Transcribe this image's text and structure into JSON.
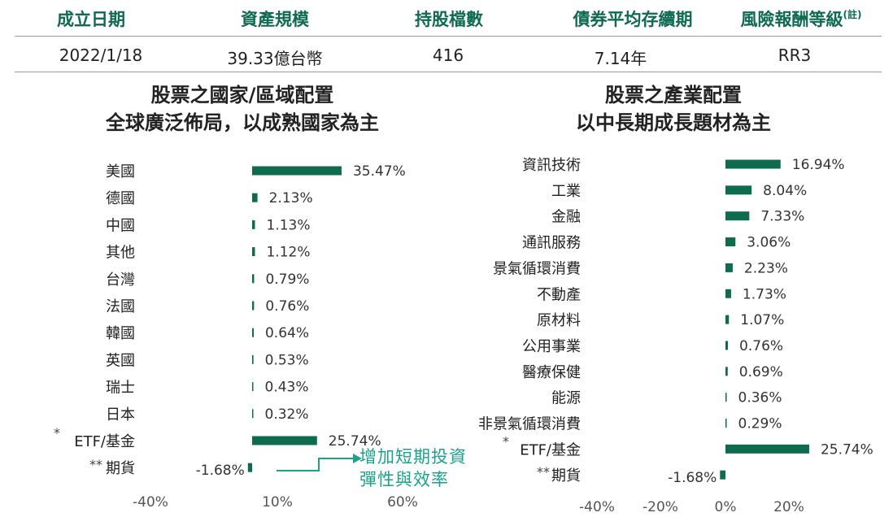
{
  "summary": {
    "headers": [
      "成立日期",
      "資產規模",
      "持股檔數",
      "債券平均存續期",
      "風險報酬等級"
    ],
    "header_note": "(註)",
    "values": [
      "2022/1/18",
      "39.33億台幣",
      "416",
      "7.14年",
      "RR3"
    ]
  },
  "left_panel": {
    "title_line1": "股票之國家/區域配置",
    "title_line2": "全球廣泛佈局，以成熟國家為主"
  },
  "right_panel": {
    "title_line1": "股票之產業配置",
    "title_line2": "以中長期成長題材為主"
  },
  "callout": {
    "line1": "增加短期投資",
    "line2": "彈性與效率"
  },
  "colors": {
    "accent": "#0e6b52",
    "bar": "#0f6b4e",
    "callout": "#1aa38a"
  },
  "chart_data": [
    {
      "type": "bar",
      "orientation": "horizontal",
      "categories": [
        "美國",
        "德國",
        "中國",
        "其他",
        "台灣",
        "法國",
        "韓國",
        "英國",
        "瑞士",
        "日本",
        "ETF/基金",
        "期貨"
      ],
      "category_prefixes": [
        "",
        "",
        "",
        "",
        "",
        "",
        "",
        "",
        "",
        "",
        "*",
        "**"
      ],
      "values": [
        35.47,
        2.13,
        1.13,
        1.12,
        0.79,
        0.76,
        0.64,
        0.53,
        0.43,
        0.32,
        25.74,
        -1.68
      ],
      "value_labels": [
        "35.47%",
        "2.13%",
        "1.13%",
        "1.12%",
        "0.79%",
        "0.76%",
        "0.64%",
        "0.53%",
        "0.43%",
        "0.32%",
        "25.74%",
        "-1.68%"
      ],
      "xticks": [
        "-40%",
        "10%",
        "60%"
      ],
      "xlim": [
        -40,
        60
      ],
      "grid": false,
      "legend": "none"
    },
    {
      "type": "bar",
      "orientation": "horizontal",
      "categories": [
        "資訊技術",
        "工業",
        "金融",
        "通訊服務",
        "景氣循環消費",
        "不動產",
        "原材料",
        "公用事業",
        "醫療保健",
        "能源",
        "非景氣循環消費",
        "ETF/基金",
        "期貨"
      ],
      "category_prefixes": [
        "",
        "",
        "",
        "",
        "",
        "",
        "",
        "",
        "",
        "",
        "",
        "*",
        "**"
      ],
      "values": [
        16.94,
        8.04,
        7.33,
        3.06,
        2.23,
        1.73,
        1.07,
        0.76,
        0.69,
        0.36,
        0.29,
        25.74,
        -1.68
      ],
      "value_labels": [
        "16.94%",
        "8.04%",
        "7.33%",
        "3.06%",
        "2.23%",
        "1.73%",
        "1.07%",
        "0.76%",
        "0.69%",
        "0.36%",
        "0.29%",
        "25.74%",
        "-1.68%"
      ],
      "xticks": [
        "-40%",
        "-20%",
        "0%",
        "20%"
      ],
      "xlim": [
        -40,
        20
      ],
      "grid": false,
      "legend": "none"
    }
  ]
}
